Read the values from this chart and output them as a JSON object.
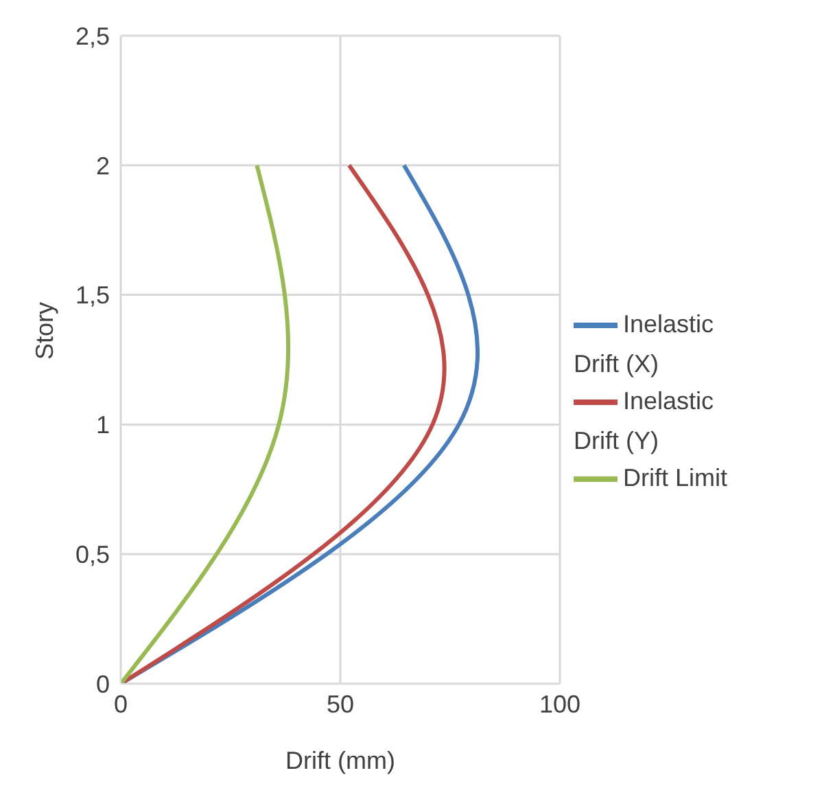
{
  "chart_data": {
    "type": "line",
    "xlabel": "Drift (mm)",
    "ylabel": "Story",
    "series": [
      {
        "name": "Inelastic Drift (X)",
        "color": "#4a7ebb",
        "x": [
          0,
          77,
          64.5
        ],
        "values": [
          0,
          1,
          2
        ]
      },
      {
        "name": "Inelastic Drift (Y)",
        "color": "#be4b48",
        "x": [
          0,
          71,
          52
        ],
        "values": [
          0,
          1,
          2
        ]
      },
      {
        "name": "Drift Limit",
        "color": "#98b954",
        "x": [
          0,
          36,
          31
        ],
        "values": [
          0,
          1,
          2
        ]
      }
    ],
    "xlim": [
      0,
      100
    ],
    "xticks": [
      0,
      50,
      100
    ],
    "ylim": [
      0,
      2.5
    ],
    "yticks": [
      {
        "value": 0,
        "label": "0"
      },
      {
        "value": 0.5,
        "label": "0,5"
      },
      {
        "value": 1,
        "label": "1"
      },
      {
        "value": 1.5,
        "label": "1,5"
      },
      {
        "value": 2,
        "label": "2"
      },
      {
        "value": 2.5,
        "label": "2,5"
      }
    ],
    "grid": true,
    "legend": "right",
    "marker": "none",
    "line_style": "solid"
  }
}
